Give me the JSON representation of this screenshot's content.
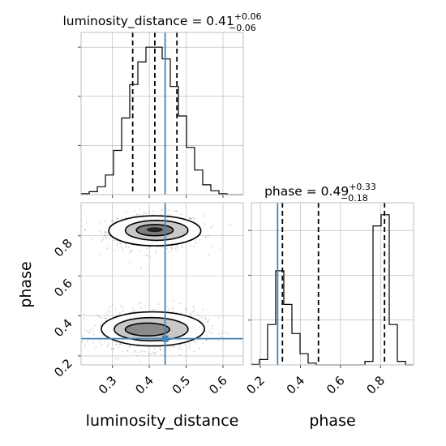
{
  "chart_data": {
    "type": "corner",
    "parameters": [
      "luminosity_distance",
      "phase"
    ],
    "truth": {
      "luminosity_distance": 0.443,
      "phase": 0.286
    },
    "truth_color": "#4682b4",
    "titles": [
      {
        "param": "luminosity_distance",
        "base": "luminosity_distance = 0.41",
        "sup": "+0.06",
        "sub": "−0.06"
      },
      {
        "param": "phase",
        "base": "phase = 0.49",
        "sup": "+0.33",
        "sub": "−0.18"
      }
    ],
    "axis_labels": {
      "x_left": "luminosity_distance",
      "x_right": "phase",
      "y": "phase"
    },
    "dist_ticks": [
      "0.3",
      "0.4",
      "0.5",
      "0.6"
    ],
    "phase_ticks": [
      "0.2",
      "0.4",
      "0.6",
      "0.8"
    ],
    "dist_range": [
      0.215,
      0.655
    ],
    "phase_range": [
      0.155,
      0.965
    ],
    "marginal_dist": {
      "quantiles": [
        0.355,
        0.415,
        0.475
      ],
      "edges": [
        0.215,
        0.237,
        0.259,
        0.281,
        0.303,
        0.325,
        0.347,
        0.369,
        0.391,
        0.413,
        0.435,
        0.457,
        0.479,
        0.501,
        0.523,
        0.545,
        0.567,
        0.589,
        0.611,
        0.633,
        0.655
      ],
      "counts": [
        1,
        3,
        8,
        20,
        45,
        78,
        112,
        135,
        150,
        150,
        138,
        110,
        80,
        48,
        25,
        10,
        4,
        1,
        0,
        0
      ]
    },
    "marginal_phase": {
      "quantiles": [
        0.31,
        0.49,
        0.82
      ],
      "edges": [
        0.155,
        0.1955,
        0.236,
        0.2765,
        0.317,
        0.3575,
        0.398,
        0.4385,
        0.479,
        0.5195,
        0.56,
        0.6005,
        0.641,
        0.6815,
        0.722,
        0.7625,
        0.803,
        0.8435,
        0.884,
        0.9245,
        0.965
      ],
      "counts": [
        1,
        12,
        90,
        210,
        135,
        70,
        25,
        4,
        0,
        0,
        0,
        0,
        0,
        0,
        8,
        310,
        335,
        90,
        8,
        0
      ]
    },
    "grid": true
  }
}
